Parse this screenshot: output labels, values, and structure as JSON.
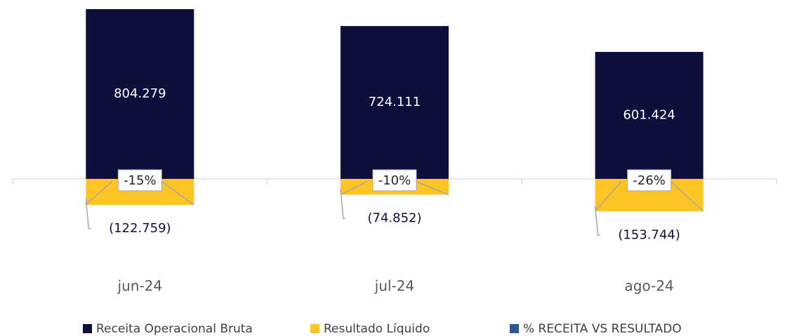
{
  "chart_data": {
    "type": "bar",
    "categories": [
      "jun-24",
      "jul-24",
      "ago-24"
    ],
    "series": [
      {
        "name": "Receita Operacional Bruta",
        "color": "#0e0f3b",
        "values": [
          804279,
          724111,
          601424
        ],
        "value_labels": [
          "804.279",
          "724.111",
          "601.424"
        ]
      },
      {
        "name": "Resultado Líquido",
        "color": "#fdc424",
        "values": [
          -122759,
          -74852,
          -153744
        ],
        "value_labels": [
          "(122.759)",
          "(74.852)",
          "(153.744)"
        ]
      },
      {
        "name": "% RECEITA VS RESULTADO",
        "color": "#2f5597",
        "values": [
          -15,
          -10,
          -26
        ],
        "value_labels": [
          "-15%",
          "-10%",
          "-26%"
        ]
      }
    ]
  }
}
